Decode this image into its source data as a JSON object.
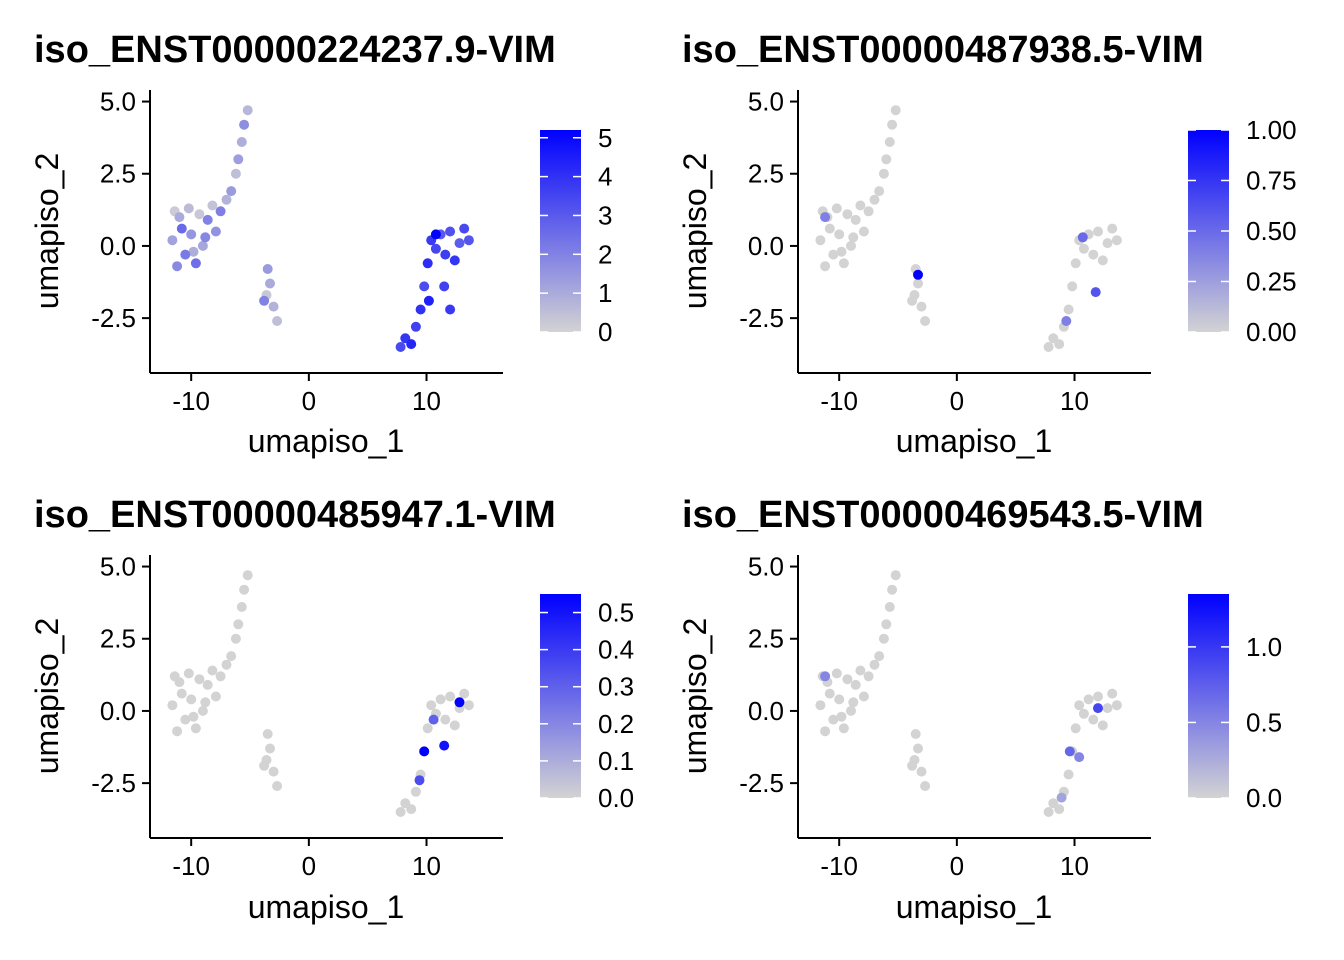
{
  "figure": {
    "background": "#ffffff"
  },
  "style": {
    "low_color": "#d3d3d3",
    "high_color": "#0000ff"
  },
  "chart_data": [
    {
      "type": "scatter",
      "title": "iso_ENST00000224237.9-VIM",
      "xlabel": "umapiso_1",
      "ylabel": "umapiso_2",
      "xlim": [
        -13.5,
        16.5
      ],
      "ylim": [
        -4.4,
        5.4
      ],
      "xticks": [
        -10,
        0,
        10
      ],
      "xtick_labels": [
        "-10",
        "0",
        "10"
      ],
      "yticks": [
        -2.5,
        0,
        2.5,
        5
      ],
      "ytick_labels": [
        "-2.5",
        "0.0",
        "2.5",
        "5.0"
      ],
      "legend": {
        "placement": "right",
        "min": 0,
        "max": 5.2,
        "ticks": [
          0,
          1,
          2,
          3,
          4,
          5
        ],
        "tick_labels": [
          "0",
          "1",
          "2",
          "3",
          "4",
          "5"
        ]
      },
      "points": [
        [
          -11.6,
          0.2,
          1.2
        ],
        [
          -11.2,
          -0.7,
          1.8
        ],
        [
          -11.0,
          1.0,
          1.0
        ],
        [
          -10.5,
          -0.3,
          2.2
        ],
        [
          -10.2,
          1.3,
          0.6
        ],
        [
          -10.0,
          0.4,
          1.5
        ],
        [
          -9.6,
          -0.6,
          2.5
        ],
        [
          -9.3,
          1.1,
          0.3
        ],
        [
          -9.0,
          0.0,
          1.1
        ],
        [
          -8.6,
          0.9,
          2.0
        ],
        [
          -8.2,
          1.4,
          0.4
        ],
        [
          -7.9,
          0.5,
          1.6
        ],
        [
          -7.5,
          1.2,
          2.1
        ],
        [
          -7.0,
          1.6,
          0.8
        ],
        [
          -6.6,
          1.9,
          1.4
        ],
        [
          -6.2,
          2.5,
          0.5
        ],
        [
          -6.0,
          3.0,
          1.3
        ],
        [
          -5.7,
          3.6,
          0.9
        ],
        [
          -5.5,
          4.2,
          1.7
        ],
        [
          -5.2,
          4.7,
          0.7
        ],
        [
          -11.4,
          1.2,
          0.2
        ],
        [
          -10.8,
          0.6,
          2.6
        ],
        [
          -9.8,
          -0.2,
          0.9
        ],
        [
          -8.8,
          0.3,
          1.9
        ],
        [
          -3.5,
          -0.8,
          1.4
        ],
        [
          -3.3,
          -1.3,
          1.0
        ],
        [
          -3.6,
          -1.7,
          0.3
        ],
        [
          -3.0,
          -2.1,
          0.8
        ],
        [
          -2.7,
          -2.6,
          0.5
        ],
        [
          -3.8,
          -1.9,
          2.0
        ],
        [
          7.8,
          -3.5,
          3.4
        ],
        [
          8.2,
          -3.2,
          3.9
        ],
        [
          8.7,
          -3.4,
          4.3
        ],
        [
          9.1,
          -2.8,
          3.6
        ],
        [
          9.5,
          -2.2,
          4.0
        ],
        [
          9.8,
          -1.4,
          3.3
        ],
        [
          10.1,
          -0.6,
          4.1
        ],
        [
          10.4,
          0.2,
          3.8
        ],
        [
          10.8,
          -0.1,
          3.5
        ],
        [
          11.2,
          0.4,
          3.0
        ],
        [
          11.6,
          -0.3,
          3.7
        ],
        [
          12.0,
          0.5,
          3.2
        ],
        [
          12.4,
          -0.5,
          3.9
        ],
        [
          12.8,
          0.1,
          2.9
        ],
        [
          13.2,
          0.6,
          3.4
        ],
        [
          13.6,
          0.2,
          3.1
        ],
        [
          10.8,
          0.4,
          5.2
        ],
        [
          11.5,
          -1.4,
          3.6
        ],
        [
          12.0,
          -2.2,
          3.8
        ],
        [
          10.2,
          -1.9,
          4.4
        ]
      ]
    },
    {
      "type": "scatter",
      "title": "iso_ENST00000487938.5-VIM",
      "xlabel": "umapiso_1",
      "ylabel": "umapiso_2",
      "xlim": [
        -13.5,
        16.5
      ],
      "ylim": [
        -4.4,
        5.4
      ],
      "xticks": [
        -10,
        0,
        10
      ],
      "xtick_labels": [
        "-10",
        "0",
        "10"
      ],
      "yticks": [
        -2.5,
        0,
        2.5,
        5
      ],
      "ytick_labels": [
        "-2.5",
        "0.0",
        "2.5",
        "5.0"
      ],
      "legend": {
        "placement": "right",
        "min": 0,
        "max": 1.0,
        "ticks": [
          0,
          0.25,
          0.5,
          0.75,
          1.0
        ],
        "tick_labels": [
          "0.00",
          "0.25",
          "0.50",
          "0.75",
          "1.00"
        ]
      },
      "points": [
        [
          -11.6,
          0.2,
          0
        ],
        [
          -11.2,
          -0.7,
          0
        ],
        [
          -11.0,
          1.0,
          0
        ],
        [
          -10.5,
          -0.3,
          0
        ],
        [
          -10.2,
          1.3,
          0
        ],
        [
          -10.0,
          0.4,
          0
        ],
        [
          -9.6,
          -0.6,
          0
        ],
        [
          -9.3,
          1.1,
          0
        ],
        [
          -9.0,
          0.0,
          0
        ],
        [
          -8.6,
          0.9,
          0
        ],
        [
          -8.2,
          1.4,
          0
        ],
        [
          -7.9,
          0.5,
          0
        ],
        [
          -7.5,
          1.2,
          0
        ],
        [
          -7.0,
          1.6,
          0
        ],
        [
          -6.6,
          1.9,
          0
        ],
        [
          -6.2,
          2.5,
          0
        ],
        [
          -6.0,
          3.0,
          0
        ],
        [
          -5.7,
          3.6,
          0
        ],
        [
          -5.5,
          4.2,
          0
        ],
        [
          -5.2,
          4.7,
          0
        ],
        [
          -11.4,
          1.2,
          0
        ],
        [
          -10.8,
          0.6,
          0
        ],
        [
          -9.8,
          -0.2,
          0
        ],
        [
          -8.8,
          0.3,
          0
        ],
        [
          -3.5,
          -0.8,
          0
        ],
        [
          -3.3,
          -1.3,
          0
        ],
        [
          -3.6,
          -1.7,
          0
        ],
        [
          -3.0,
          -2.1,
          0
        ],
        [
          -2.7,
          -2.6,
          0
        ],
        [
          -3.8,
          -1.9,
          0
        ],
        [
          7.8,
          -3.5,
          0
        ],
        [
          8.2,
          -3.2,
          0
        ],
        [
          8.7,
          -3.4,
          0
        ],
        [
          9.1,
          -2.8,
          0
        ],
        [
          9.5,
          -2.2,
          0
        ],
        [
          9.8,
          -1.4,
          0
        ],
        [
          10.1,
          -0.6,
          0
        ],
        [
          10.4,
          0.2,
          0
        ],
        [
          10.8,
          -0.1,
          0
        ],
        [
          11.2,
          0.4,
          0
        ],
        [
          11.6,
          -0.3,
          0
        ],
        [
          12.0,
          0.5,
          0
        ],
        [
          12.4,
          -0.5,
          0
        ],
        [
          12.8,
          0.1,
          0
        ],
        [
          13.2,
          0.6,
          0
        ],
        [
          13.6,
          0.2,
          0
        ],
        [
          10.7,
          0.3,
          0.5
        ],
        [
          11.8,
          -1.6,
          0.6
        ],
        [
          9.3,
          -2.6,
          0.4
        ],
        [
          -11.2,
          1.0,
          0.4
        ],
        [
          -3.3,
          -1.0,
          1.0
        ]
      ]
    },
    {
      "type": "scatter",
      "title": "iso_ENST00000485947.1-VIM",
      "xlabel": "umapiso_1",
      "ylabel": "umapiso_2",
      "xlim": [
        -13.5,
        16.5
      ],
      "ylim": [
        -4.4,
        5.4
      ],
      "xticks": [
        -10,
        0,
        10
      ],
      "xtick_labels": [
        "-10",
        "0",
        "10"
      ],
      "yticks": [
        -2.5,
        0,
        2.5,
        5
      ],
      "ytick_labels": [
        "-2.5",
        "0.0",
        "2.5",
        "5.0"
      ],
      "legend": {
        "placement": "right",
        "min": 0,
        "max": 0.55,
        "ticks": [
          0,
          0.1,
          0.2,
          0.3,
          0.4,
          0.5
        ],
        "tick_labels": [
          "0.0",
          "0.1",
          "0.2",
          "0.3",
          "0.4",
          "0.5"
        ]
      },
      "points": [
        [
          -11.6,
          0.2,
          0
        ],
        [
          -11.2,
          -0.7,
          0
        ],
        [
          -11.0,
          1.0,
          0
        ],
        [
          -10.5,
          -0.3,
          0
        ],
        [
          -10.2,
          1.3,
          0
        ],
        [
          -10.0,
          0.4,
          0
        ],
        [
          -9.6,
          -0.6,
          0
        ],
        [
          -9.3,
          1.1,
          0
        ],
        [
          -9.0,
          0.0,
          0
        ],
        [
          -8.6,
          0.9,
          0
        ],
        [
          -8.2,
          1.4,
          0
        ],
        [
          -7.9,
          0.5,
          0
        ],
        [
          -7.5,
          1.2,
          0
        ],
        [
          -7.0,
          1.6,
          0
        ],
        [
          -6.6,
          1.9,
          0
        ],
        [
          -6.2,
          2.5,
          0
        ],
        [
          -6.0,
          3.0,
          0
        ],
        [
          -5.7,
          3.6,
          0
        ],
        [
          -5.5,
          4.2,
          0
        ],
        [
          -5.2,
          4.7,
          0
        ],
        [
          -11.4,
          1.2,
          0
        ],
        [
          -10.8,
          0.6,
          0
        ],
        [
          -9.8,
          -0.2,
          0
        ],
        [
          -8.8,
          0.3,
          0
        ],
        [
          -3.5,
          -0.8,
          0
        ],
        [
          -3.3,
          -1.3,
          0
        ],
        [
          -3.6,
          -1.7,
          0
        ],
        [
          -3.0,
          -2.1,
          0
        ],
        [
          -2.7,
          -2.6,
          0
        ],
        [
          -3.8,
          -1.9,
          0
        ],
        [
          7.8,
          -3.5,
          0
        ],
        [
          8.2,
          -3.2,
          0
        ],
        [
          8.7,
          -3.4,
          0
        ],
        [
          9.1,
          -2.8,
          0
        ],
        [
          9.5,
          -2.2,
          0
        ],
        [
          9.8,
          -1.4,
          0
        ],
        [
          10.1,
          -0.6,
          0
        ],
        [
          10.4,
          0.2,
          0
        ],
        [
          10.8,
          -0.1,
          0
        ],
        [
          11.2,
          0.4,
          0
        ],
        [
          11.6,
          -0.3,
          0
        ],
        [
          12.0,
          0.5,
          0
        ],
        [
          12.4,
          -0.5,
          0
        ],
        [
          12.8,
          0.1,
          0
        ],
        [
          13.2,
          0.6,
          0
        ],
        [
          13.6,
          0.2,
          0
        ],
        [
          9.8,
          -1.4,
          0.55
        ],
        [
          11.5,
          -1.2,
          0.5
        ],
        [
          12.8,
          0.3,
          0.55
        ],
        [
          9.4,
          -2.4,
          0.35
        ],
        [
          10.6,
          -0.3,
          0.3
        ]
      ]
    },
    {
      "type": "scatter",
      "title": "iso_ENST00000469543.5-VIM",
      "xlabel": "umapiso_1",
      "ylabel": "umapiso_2",
      "xlim": [
        -13.5,
        16.5
      ],
      "ylim": [
        -4.4,
        5.4
      ],
      "xticks": [
        -10,
        0,
        10
      ],
      "xtick_labels": [
        "-10",
        "0",
        "10"
      ],
      "yticks": [
        -2.5,
        0,
        2.5,
        5
      ],
      "ytick_labels": [
        "-2.5",
        "0.0",
        "2.5",
        "5.0"
      ],
      "legend": {
        "placement": "right",
        "min": 0,
        "max": 1.35,
        "ticks": [
          0,
          0.5,
          1.0
        ],
        "tick_labels": [
          "0.0",
          "0.5",
          "1.0"
        ]
      },
      "points": [
        [
          -11.6,
          0.2,
          0
        ],
        [
          -11.2,
          -0.7,
          0
        ],
        [
          -11.0,
          1.0,
          0
        ],
        [
          -10.5,
          -0.3,
          0
        ],
        [
          -10.2,
          1.3,
          0
        ],
        [
          -10.0,
          0.4,
          0
        ],
        [
          -9.6,
          -0.6,
          0
        ],
        [
          -9.3,
          1.1,
          0
        ],
        [
          -9.0,
          0.0,
          0
        ],
        [
          -8.6,
          0.9,
          0
        ],
        [
          -8.2,
          1.4,
          0
        ],
        [
          -7.9,
          0.5,
          0
        ],
        [
          -7.5,
          1.2,
          0
        ],
        [
          -7.0,
          1.6,
          0
        ],
        [
          -6.6,
          1.9,
          0
        ],
        [
          -6.2,
          2.5,
          0
        ],
        [
          -6.0,
          3.0,
          0
        ],
        [
          -5.7,
          3.6,
          0
        ],
        [
          -5.5,
          4.2,
          0
        ],
        [
          -5.2,
          4.7,
          0
        ],
        [
          -11.4,
          1.2,
          0
        ],
        [
          -10.8,
          0.6,
          0
        ],
        [
          -9.8,
          -0.2,
          0
        ],
        [
          -8.8,
          0.3,
          0
        ],
        [
          -3.5,
          -0.8,
          0
        ],
        [
          -3.3,
          -1.3,
          0
        ],
        [
          -3.6,
          -1.7,
          0
        ],
        [
          -3.0,
          -2.1,
          0
        ],
        [
          -2.7,
          -2.6,
          0
        ],
        [
          -3.8,
          -1.9,
          0
        ],
        [
          7.8,
          -3.5,
          0
        ],
        [
          8.2,
          -3.2,
          0
        ],
        [
          8.7,
          -3.4,
          0
        ],
        [
          9.1,
          -2.8,
          0
        ],
        [
          9.5,
          -2.2,
          0
        ],
        [
          9.8,
          -1.4,
          0
        ],
        [
          10.1,
          -0.6,
          0
        ],
        [
          10.4,
          0.2,
          0
        ],
        [
          10.8,
          -0.1,
          0
        ],
        [
          11.2,
          0.4,
          0
        ],
        [
          11.6,
          -0.3,
          0
        ],
        [
          12.0,
          0.5,
          0
        ],
        [
          12.4,
          -0.5,
          0
        ],
        [
          12.8,
          0.1,
          0
        ],
        [
          13.2,
          0.6,
          0
        ],
        [
          13.6,
          0.2,
          0
        ],
        [
          9.6,
          -1.4,
          0.7
        ],
        [
          10.4,
          -1.6,
          0.5
        ],
        [
          12.0,
          0.1,
          0.9
        ],
        [
          -11.2,
          1.2,
          0.5
        ],
        [
          8.9,
          -3.0,
          0.3
        ]
      ]
    }
  ]
}
